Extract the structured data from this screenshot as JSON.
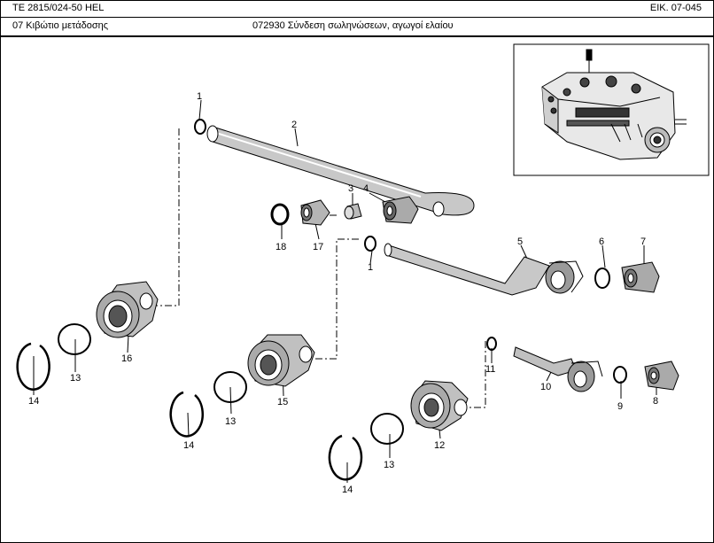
{
  "header": {
    "doc_id": "TE 2815/024-50 HEL",
    "figure_no": "ΕΙΚ. 07-045",
    "section": "07  Κιβώτιο μετάδοσης",
    "group": "072930  Σύνδεση σωληνώσεων, αγωγοί ελαίου"
  },
  "callouts": [
    "1",
    "2",
    "3",
    "4",
    "18",
    "17",
    "1",
    "5",
    "6",
    "7",
    "16",
    "13",
    "14",
    "15",
    "13",
    "14",
    "10",
    "9",
    "8",
    "11",
    "12",
    "13",
    "14"
  ]
}
